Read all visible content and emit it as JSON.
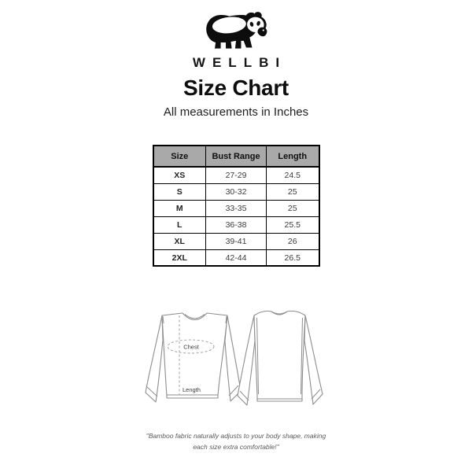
{
  "header": {
    "logo_icon": "panda-icon",
    "brand": "WELLBI",
    "title": "Size Chart",
    "subtitle": "All measurements in Inches"
  },
  "table": {
    "columns": [
      "Size",
      "Bust Range",
      "Length"
    ],
    "rows": [
      {
        "size": "XS",
        "bust": "27-29",
        "length": "24.5"
      },
      {
        "size": "S",
        "bust": "30-32",
        "length": "25"
      },
      {
        "size": "M",
        "bust": "33-35",
        "length": "25"
      },
      {
        "size": "L",
        "bust": "36-38",
        "length": "25.5"
      },
      {
        "size": "XL",
        "bust": "39-41",
        "length": "26"
      },
      {
        "size": "2XL",
        "bust": "42-44",
        "length": "26.5"
      }
    ],
    "header_bg": "#a9a9a9",
    "border_color": "#000000"
  },
  "diagram": {
    "front_view": "front-shirt-diagram",
    "back_view": "back-shirt-diagram",
    "chest_label": "Chest",
    "length_label": "Length",
    "line_color": "#8d8d8d"
  },
  "footnote": {
    "line1": "\"Bamboo fabric naturally adjusts to your body shape, making",
    "line2": "each size extra comfortable!\""
  }
}
